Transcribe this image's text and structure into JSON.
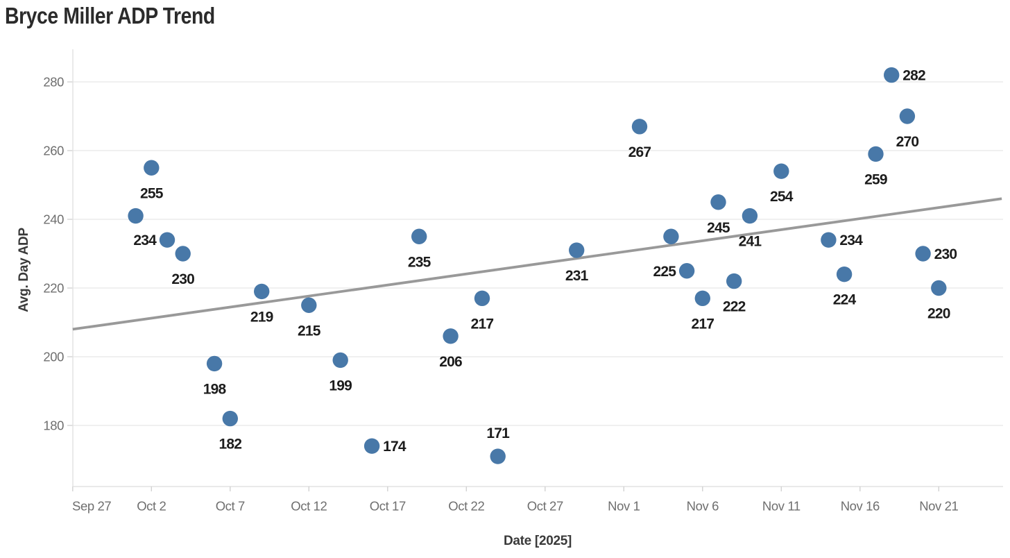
{
  "page": {
    "title": "Bryce Miller ADP Trend"
  },
  "chart_data": {
    "type": "scatter",
    "title": "Bryce Miller ADP Trend",
    "xlabel": "Date [2025]",
    "ylabel": "Avg. Day ADP",
    "legend": "none",
    "grid": "horizontal-only",
    "y_ticks": [
      180,
      200,
      220,
      240,
      260,
      280
    ],
    "ylim": [
      162,
      289
    ],
    "x_axis_unit": "days since Sep 27, 2025",
    "xlim_days": [
      0,
      59
    ],
    "x_ticks": [
      {
        "label": "Sep 27",
        "day": 0
      },
      {
        "label": "Oct 2",
        "day": 5
      },
      {
        "label": "Oct 7",
        "day": 10
      },
      {
        "label": "Oct 12",
        "day": 15
      },
      {
        "label": "Oct 17",
        "day": 20
      },
      {
        "label": "Oct 22",
        "day": 25
      },
      {
        "label": "Oct 27",
        "day": 30
      },
      {
        "label": "Nov 1",
        "day": 35
      },
      {
        "label": "Nov 6",
        "day": 40
      },
      {
        "label": "Nov 11",
        "day": 45
      },
      {
        "label": "Nov 16",
        "day": 50
      },
      {
        "label": "Nov 21",
        "day": 55
      }
    ],
    "points": [
      {
        "date": "Oct 1",
        "day": 4,
        "value": 241,
        "label": "",
        "label_pos": "none"
      },
      {
        "date": "Oct 2",
        "day": 5,
        "value": 255,
        "label": "255",
        "label_pos": "below"
      },
      {
        "date": "Oct 3",
        "day": 6,
        "value": 234,
        "label": "234",
        "label_pos": "left"
      },
      {
        "date": "Oct 4",
        "day": 7,
        "value": 230,
        "label": "230",
        "label_pos": "below"
      },
      {
        "date": "Oct 6",
        "day": 9,
        "value": 198,
        "label": "198",
        "label_pos": "below"
      },
      {
        "date": "Oct 7",
        "day": 10,
        "value": 182,
        "label": "182",
        "label_pos": "below"
      },
      {
        "date": "Oct 9",
        "day": 12,
        "value": 219,
        "label": "219",
        "label_pos": "below"
      },
      {
        "date": "Oct 12",
        "day": 15,
        "value": 215,
        "label": "215",
        "label_pos": "below"
      },
      {
        "date": "Oct 14",
        "day": 17,
        "value": 199,
        "label": "199",
        "label_pos": "below"
      },
      {
        "date": "Oct 16",
        "day": 19,
        "value": 174,
        "label": "174",
        "label_pos": "right"
      },
      {
        "date": "Oct 19",
        "day": 22,
        "value": 235,
        "label": "235",
        "label_pos": "below"
      },
      {
        "date": "Oct 21",
        "day": 24,
        "value": 206,
        "label": "206",
        "label_pos": "below"
      },
      {
        "date": "Oct 23",
        "day": 26,
        "value": 217,
        "label": "217",
        "label_pos": "below"
      },
      {
        "date": "Oct 24",
        "day": 27,
        "value": 171,
        "label": "171",
        "label_pos": "above"
      },
      {
        "date": "Oct 29",
        "day": 32,
        "value": 231,
        "label": "231",
        "label_pos": "below"
      },
      {
        "date": "Nov 2",
        "day": 36,
        "value": 267,
        "label": "267",
        "label_pos": "below"
      },
      {
        "date": "Nov 4",
        "day": 38,
        "value": 235,
        "label": "",
        "label_pos": "none"
      },
      {
        "date": "Nov 5",
        "day": 39,
        "value": 225,
        "label": "225",
        "label_pos": "left"
      },
      {
        "date": "Nov 6",
        "day": 40,
        "value": 217,
        "label": "217",
        "label_pos": "below"
      },
      {
        "date": "Nov 7",
        "day": 41,
        "value": 245,
        "label": "245",
        "label_pos": "below"
      },
      {
        "date": "Nov 8",
        "day": 42,
        "value": 222,
        "label": "222",
        "label_pos": "below"
      },
      {
        "date": "Nov 9",
        "day": 43,
        "value": 241,
        "label": "241",
        "label_pos": "below"
      },
      {
        "date": "Nov 11",
        "day": 45,
        "value": 254,
        "label": "254",
        "label_pos": "below"
      },
      {
        "date": "Nov 14",
        "day": 48,
        "value": 234,
        "label": "234",
        "label_pos": "right"
      },
      {
        "date": "Nov 15",
        "day": 49,
        "value": 224,
        "label": "224",
        "label_pos": "below"
      },
      {
        "date": "Nov 17",
        "day": 51,
        "value": 259,
        "label": "259",
        "label_pos": "below"
      },
      {
        "date": "Nov 18",
        "day": 52,
        "value": 282,
        "label": "282",
        "label_pos": "right"
      },
      {
        "date": "Nov 19",
        "day": 53,
        "value": 270,
        "label": "270",
        "label_pos": "below"
      },
      {
        "date": "Nov 20",
        "day": 54,
        "value": 230,
        "label": "230",
        "label_pos": "right"
      },
      {
        "date": "Nov 21",
        "day": 55,
        "value": 220,
        "label": "220",
        "label_pos": "below"
      }
    ],
    "trend_line": {
      "type": "linear",
      "start": {
        "day": 0,
        "value": 208
      },
      "end": {
        "day": 59,
        "value": 246
      }
    },
    "colors": {
      "point": "#4878a8",
      "trend": "#999999",
      "grid": "#ececec",
      "axis": "#e2e2e2",
      "tick": "#d2d2d2",
      "tick_label": "#6f6f6f",
      "data_label": "#1c1c1c",
      "title": "#2b2b2b"
    }
  }
}
